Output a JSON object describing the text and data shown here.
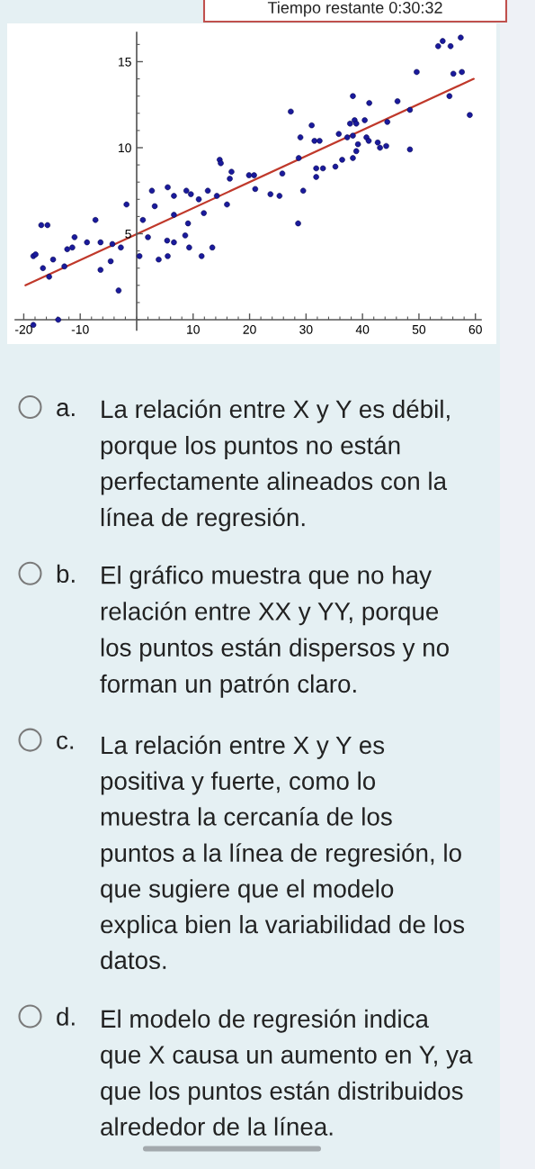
{
  "chart_data": {
    "type": "scatter",
    "series": [
      {
        "color": "#1a1a9c",
        "x": [
          -18.3,
          -17.9,
          -16.9,
          -15.8,
          -16.6,
          -15.5,
          -14.8,
          -12.8,
          -12.3,
          -11.4,
          -11.0,
          -8.8,
          -7.3,
          -6.4,
          -6.4,
          -4.6,
          -4.3,
          -3.2,
          -2.8,
          -1.8,
          0.5,
          1.1,
          2.0,
          2.7,
          3.2,
          3.9,
          5.5,
          5.5,
          6.6,
          5.4,
          6.6,
          6.6,
          -18.3,
          -13.9,
          8.8,
          9.6,
          11.0,
          12.6,
          14.2,
          14.7,
          14.9,
          16.8,
          16.5,
          16.0,
          11.9,
          9.1,
          8.6,
          9.3,
          11.5,
          13.4,
          19.9,
          20.8,
          21.0,
          23.7,
          25.3,
          25.8,
          27.3,
          29.0,
          31.0,
          31.5,
          32.4,
          35.8,
          28.7,
          31.8,
          33.0,
          31.8,
          35.2,
          36.4,
          29.5,
          28.6,
          38.3,
          37.3,
          38.3,
          39.2,
          38.9,
          40.7,
          41.1,
          42.7,
          43.1,
          44.2,
          48.4,
          37.8,
          38.6,
          38.9,
          40.4,
          38.3,
          41.2,
          44.4,
          46.2,
          48.4,
          49.6,
          55.4,
          56.1,
          57.6,
          59.0,
          53.4,
          54.2,
          55.6,
          57.4
        ],
        "values": [
          3.7,
          3.8,
          5.5,
          5.5,
          3.0,
          2.5,
          3.5,
          3.1,
          4.1,
          4.2,
          4.8,
          4.5,
          5.8,
          4.5,
          2.9,
          3.4,
          4.4,
          1.7,
          4.2,
          6.7,
          3.7,
          5.8,
          4.8,
          7.5,
          6.6,
          3.5,
          7.7,
          3.7,
          7.2,
          4.6,
          4.5,
          6.1,
          -0.3,
          0.0,
          7.5,
          7.3,
          7.0,
          7.5,
          7.2,
          9.3,
          9.1,
          8.6,
          8.2,
          6.7,
          6.2,
          5.6,
          4.9,
          4.2,
          3.7,
          4.2,
          8.4,
          8.4,
          7.6,
          7.3,
          7.2,
          8.5,
          12.1,
          10.6,
          11.3,
          10.4,
          10.4,
          10.8,
          9.4,
          8.8,
          8.8,
          8.3,
          8.9,
          9.3,
          7.5,
          5.6,
          9.4,
          10.6,
          10.7,
          10.2,
          9.8,
          10.6,
          10.4,
          10.3,
          10.0,
          10.1,
          9.9,
          11.4,
          11.6,
          11.4,
          11.6,
          13.0,
          12.6,
          11.5,
          12.7,
          12.2,
          14.4,
          13.0,
          14.3,
          14.4,
          11.9,
          15.9,
          16.2,
          15.9,
          16.4
        ]
      },
      {
        "type": "line",
        "marker": "none",
        "color": "#c0392b",
        "x": [
          -19.7,
          59.7
        ],
        "values": [
          2.0,
          14.0
        ]
      }
    ],
    "xlim": [
      -21.5,
      61
    ],
    "ylim": [
      -0.6,
      16.7
    ],
    "xticks": [
      -20,
      -10,
      10,
      20,
      30,
      40,
      50,
      60
    ],
    "yticks": [
      5,
      10,
      15
    ],
    "marker": "circle",
    "annotations": [
      "Tiempo restante 0:30:32",
      "a. La relación entre X y Y es débil,\nporque los puntos no están\nperfectamente alineados con la\nlínea de regresión.",
      "b. El gráfico muestra que no hay\nrelación entre XX y YY, porque\nlos puntos están dispersos y no\nforman un patrón claro.",
      "c. La relación entre X y Y es\npositiva y fuerte, como lo\nmuestra la cercanía de los\npuntos a la línea de regresión, lo\nque sugiere que el modelo\nexplica bien la variabilidad de los\ndatos.",
      "d. El modelo de regresión indica\nque X causa un aumento en Y, ya\nque los puntos están distribuidos\nalrededor de la línea."
    ]
  }
}
